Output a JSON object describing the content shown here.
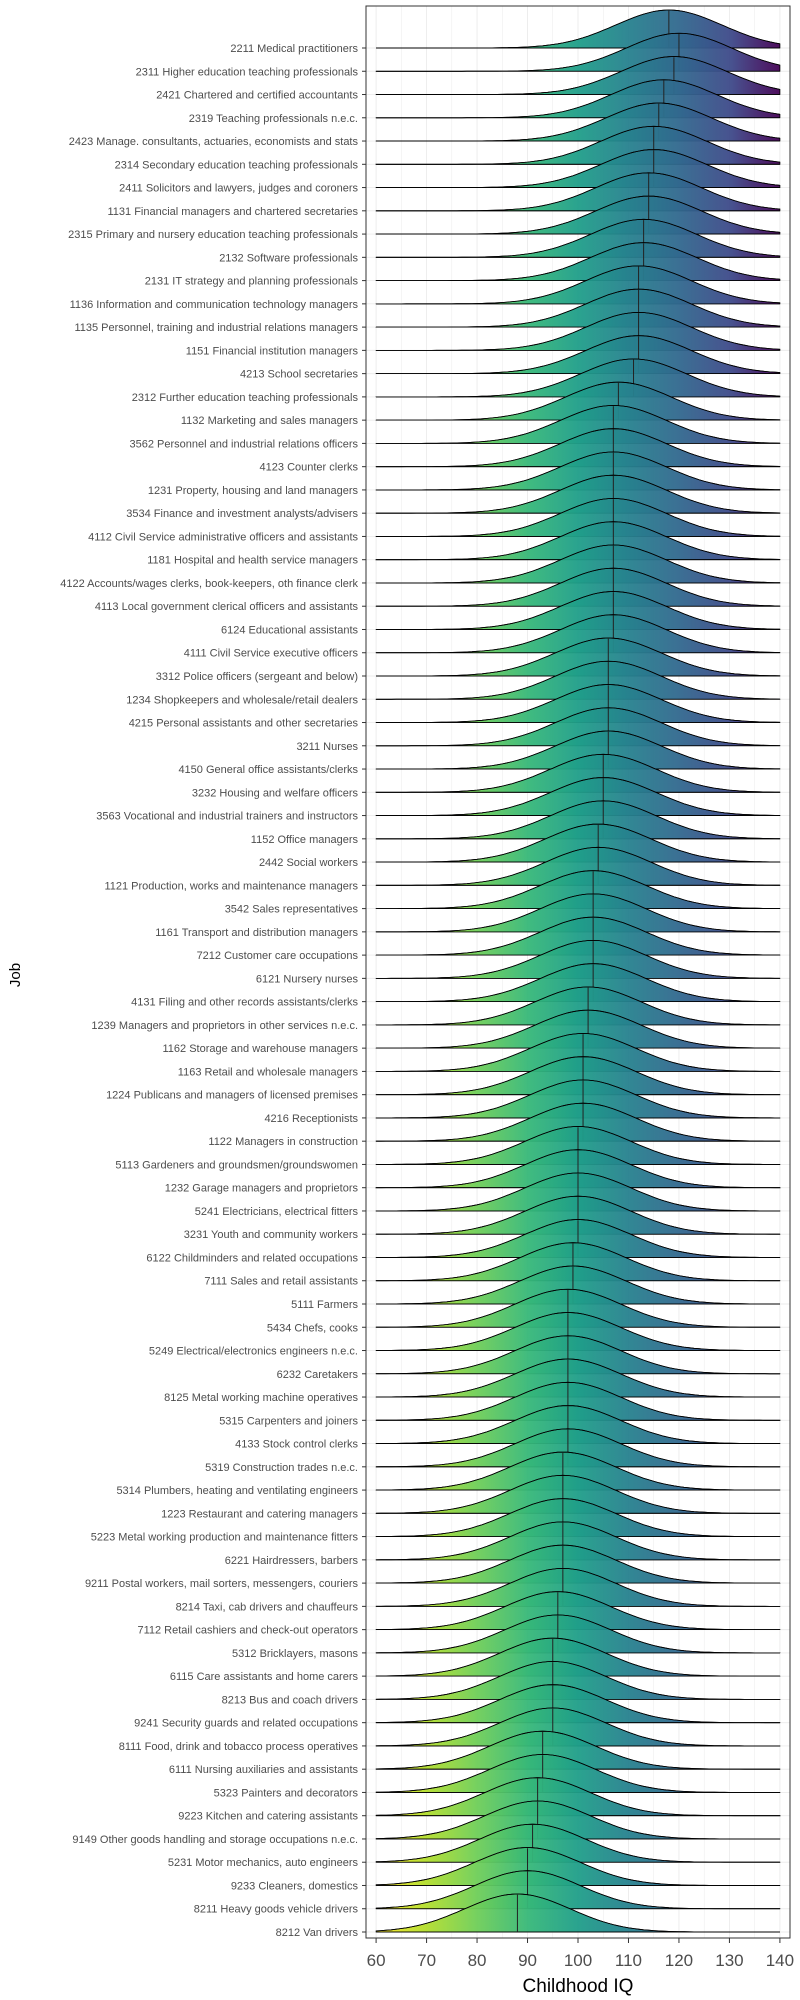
{
  "chart_data": {
    "type": "ridgeline",
    "xlabel": "Childhood IQ",
    "ylabel": "Job",
    "xlim": [
      58,
      142
    ],
    "xticks": [
      "60",
      "70",
      "80",
      "90",
      "100",
      "110",
      "120",
      "130",
      "140"
    ],
    "grid": true,
    "colormap": "viridis",
    "categories": [
      "2211 Medical practitioners",
      "2311 Higher education teaching professionals",
      "2421 Chartered and certified accountants",
      "2319 Teaching professionals n.e.c.",
      "2423 Manage. consultants, actuaries, economists and stats",
      "2314 Secondary education teaching  professionals",
      "2411 Solicitors and lawyers, judges and coroners",
      "1131 Financial managers and chartered secretaries",
      "2315 Primary and nursery education teaching professionals",
      "2132 Software professionals",
      "2131 IT strategy and planning professionals",
      "1136 Information and communication technology managers",
      "1135 Personnel, training and industrial relations managers",
      "1151 Financial institution managers",
      "4213 School secretaries",
      "2312 Further education teaching professionals",
      "1132 Marketing and sales managers",
      "3562 Personnel and industrial relations officers",
      "4123 Counter clerks",
      "1231 Property, housing and land managers",
      "3534 Finance and investment analysts/advisers",
      "4112 Civil Service administrative officers and assistants",
      "1181 Hospital and health service managers",
      "4122 Accounts/wages clerks, book-keepers, oth finance clerk",
      "4113 Local government clerical officers and assistants",
      "6124 Educational assistants",
      "4111 Civil Service executive officers",
      "3312 Police officers (sergeant and below)",
      "1234 Shopkeepers and wholesale/retail dealers",
      "4215 Personal assistants and other secretaries",
      "3211 Nurses",
      "4150 General office assistants/clerks",
      "3232 Housing and welfare officers",
      "3563 Vocational and industrial trainers and instructors",
      "1152 Office managers",
      "2442 Social workers",
      "1121 Production, works and maintenance managers",
      "3542 Sales representatives",
      "1161 Transport and distribution managers",
      "7212 Customer care occupations",
      "6121 Nursery nurses",
      "4131 Filing and other records assistants/clerks",
      "1239 Managers and proprietors in other services n.e.c.",
      "1162 Storage and warehouse managers",
      "1163 Retail and wholesale managers",
      "1224 Publicans and managers of licensed premises",
      "4216 Receptionists",
      "1122 Managers in construction",
      "5113 Gardeners and groundsmen/groundswomen",
      "1232 Garage managers and proprietors",
      "5241 Electricians, electrical fitters",
      "3231 Youth and community workers",
      "6122 Childminders and related occupations",
      "7111 Sales and retail assistants",
      "5111 Farmers",
      "5434 Chefs, cooks",
      "5249 Electrical/electronics engineers n.e.c.",
      "6232 Caretakers",
      "8125 Metal working machine operatives",
      "5315 Carpenters and joiners",
      "4133 Stock control clerks",
      "5319 Construction trades n.e.c.",
      "5314 Plumbers, heating and ventilating engineers",
      "1223 Restaurant and catering managers",
      "5223 Metal working production and maintenance fitters",
      "6221 Hairdressers, barbers",
      "9211 Postal workers, mail sorters, messengers, couriers",
      "8214 Taxi, cab drivers and chauffeurs",
      "7112 Retail cashiers and check-out operators",
      "5312 Bricklayers, masons",
      "6115 Care assistants and home carers",
      "8213 Bus and coach drivers",
      "9241 Security guards and related occupations",
      "8111 Food, drink and tobacco process operatives",
      "6111 Nursing auxiliaries and assistants",
      "5323 Painters and decorators",
      "9223 Kitchen and catering assistants",
      "9149 Other goods handling and storage occupations n.e.c.",
      "5231 Motor mechanics, auto engineers",
      "9233 Cleaners, domestics",
      "8211 Heavy goods vehicle drivers",
      "8212 Van drivers"
    ],
    "medians": [
      118,
      120,
      119,
      117,
      116,
      115,
      115,
      114,
      114,
      113,
      113,
      112,
      112,
      112,
      112,
      111,
      108,
      107,
      107,
      107,
      107,
      107,
      107,
      107,
      107,
      107,
      107,
      106,
      106,
      106,
      106,
      106,
      105,
      105,
      105,
      104,
      104,
      103,
      103,
      103,
      103,
      103,
      102,
      102,
      101,
      101,
      101,
      101,
      100,
      100,
      100,
      100,
      100,
      99,
      99,
      98,
      98,
      98,
      98,
      98,
      98,
      98,
      97,
      97,
      97,
      97,
      97,
      97,
      96,
      96,
      95,
      95,
      95,
      95,
      93,
      93,
      92,
      92,
      91,
      90,
      90,
      88
    ]
  }
}
